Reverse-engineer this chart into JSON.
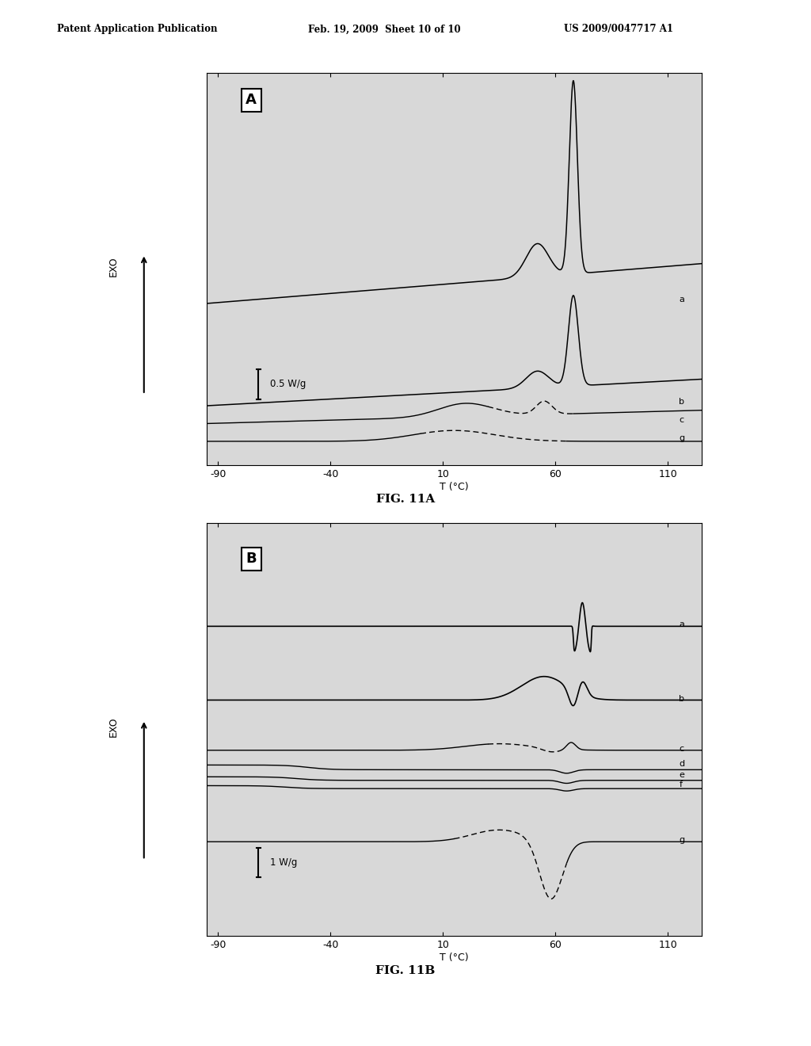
{
  "fig11a_label": "FIG. 11A",
  "fig11b_label": "FIG. 11B",
  "panel_A_label": "A",
  "panel_B_label": "B",
  "scale_A": "0.5 W/g",
  "scale_B": "1 W/g",
  "exo_label": "EXO",
  "xlabel": "T (°C)",
  "xmin": -90,
  "xmax": 110,
  "xticks": [
    -90,
    -40,
    10,
    60,
    110
  ],
  "bg_color": "#d8d8d8",
  "line_color": "#000000",
  "header_left": "Patent Application Publication",
  "header_mid": "Feb. 19, 2009  Sheet 10 of 10",
  "header_right": "US 2009/0047717 A1"
}
